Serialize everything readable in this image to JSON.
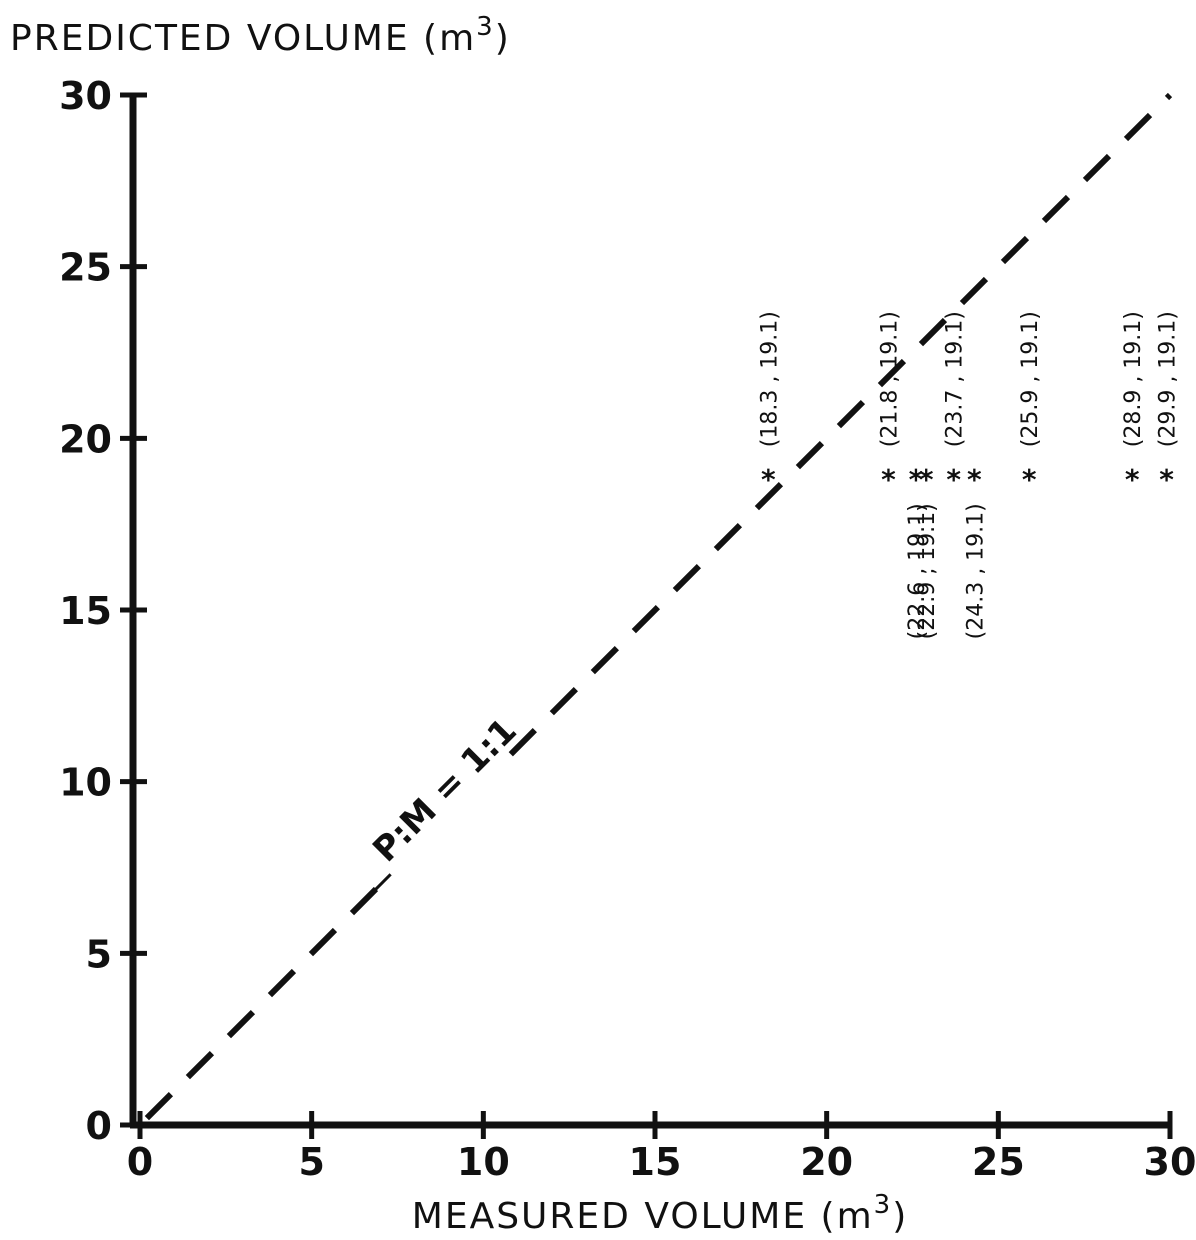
{
  "chart_data": {
    "type": "scatter",
    "title": "",
    "ylabel": "PREDICTED VOLUME (m",
    "ylabel_sup": "3",
    "ylabel_close": ")",
    "xlabel": "MEASURED VOLUME (m",
    "xlabel_sup": "3",
    "xlabel_close": ")",
    "xlim": [
      0,
      30
    ],
    "ylim": [
      0,
      30
    ],
    "x_ticks": [
      0,
      5,
      10,
      15,
      20,
      25,
      30
    ],
    "y_ticks": [
      0,
      5,
      10,
      15,
      20,
      25,
      30
    ],
    "x_tick_labels": [
      "0",
      "5",
      "10",
      "15",
      "20",
      "25",
      "30"
    ],
    "y_tick_labels": [
      "0",
      "5",
      "10",
      "15",
      "20",
      "25",
      "30"
    ],
    "grid": false,
    "marker": "*",
    "reference_line": {
      "label": "P:M = 1:1",
      "slope": 1,
      "intercept": 0
    },
    "points": [
      {
        "x": 18.3,
        "y": 19.1,
        "label": "(18.3 , 19.1)"
      },
      {
        "x": 21.8,
        "y": 19.1,
        "label": "(21.8 , 19.1)"
      },
      {
        "x": 22.6,
        "y": 19.1,
        "label": "(22.6 , 19.1)"
      },
      {
        "x": 22.9,
        "y": 19.1,
        "label": "(22.9 , 19.1)"
      },
      {
        "x": 23.7,
        "y": 19.1,
        "label": "(23.7 , 19.1)"
      },
      {
        "x": 24.3,
        "y": 19.1,
        "label": "(24.3 , 19.1)"
      },
      {
        "x": 25.9,
        "y": 19.1,
        "label": "(25.9 , 19.1)"
      },
      {
        "x": 28.9,
        "y": 19.1,
        "label": "(28.9 , 19.1)"
      },
      {
        "x": 29.9,
        "y": 19.1,
        "label": "(29.9 , 19.1)"
      }
    ]
  }
}
